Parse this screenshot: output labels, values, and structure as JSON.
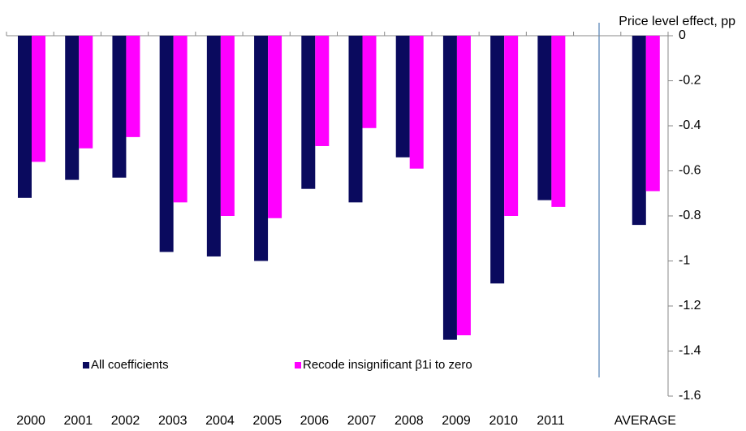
{
  "chart_data": {
    "type": "bar",
    "y_label": "Price level effect, pp",
    "categories": [
      "2000",
      "2001",
      "2002",
      "2003",
      "2004",
      "2005",
      "2006",
      "2007",
      "2008",
      "2009",
      "2010",
      "2011",
      null,
      "AVERAGE"
    ],
    "series": [
      {
        "name": "All coefficients",
        "color": "#0a0a5e",
        "values": [
          -0.72,
          -0.64,
          -0.63,
          -0.96,
          -0.98,
          -1.0,
          -0.68,
          -0.74,
          -0.54,
          -1.35,
          -1.1,
          -0.73,
          null,
          -0.84
        ]
      },
      {
        "name": "Recode insignificant β1i  to zero",
        "color": "#ff00ff",
        "values": [
          -0.56,
          -0.5,
          -0.45,
          -0.74,
          -0.8,
          -0.81,
          -0.49,
          -0.41,
          -0.59,
          -1.33,
          -0.8,
          -0.76,
          null,
          -0.69
        ]
      }
    ],
    "ylim": [
      0,
      -1.6
    ],
    "yticks": [
      0,
      -0.2,
      -0.4,
      -0.6,
      -0.8,
      -1,
      -1.2,
      -1.4,
      -1.6
    ],
    "legend": "lower left"
  }
}
